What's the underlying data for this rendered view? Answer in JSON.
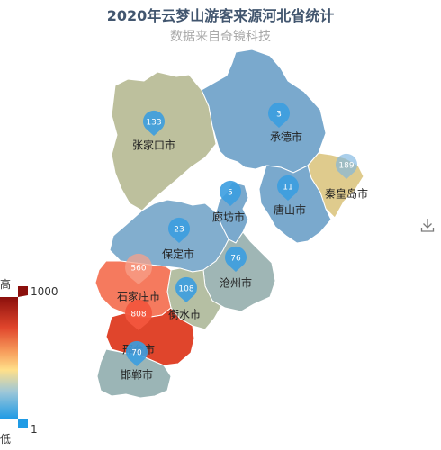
{
  "title": "2020年云梦山游客来源河北省统计",
  "subtitle": "数据来自奇镜科技",
  "colors": {
    "title": "#42566f",
    "subtitle": "#a9a9a9",
    "pin": "#3b9de0",
    "border": "#ffffff"
  },
  "visual_map": {
    "min_value": "1",
    "max_value": "1000",
    "high_label": "高",
    "low_label": "低"
  },
  "toolbox": {
    "icon": "download-icon"
  },
  "cities": [
    {
      "name": "张家口市",
      "value": 133,
      "color": "#bdc09d"
    },
    {
      "name": "承德市",
      "value": 3,
      "color": "#7aa9cd"
    },
    {
      "name": "秦皇岛市",
      "value": 189,
      "color": "#dfcb8d"
    },
    {
      "name": "唐山市",
      "value": 11,
      "color": "#7aa9cd"
    },
    {
      "name": "廊坊市",
      "value": 5,
      "color": "#7aa9cd"
    },
    {
      "name": "保定市",
      "value": 23,
      "color": "#82aece"
    },
    {
      "name": "沧州市",
      "value": 76,
      "color": "#9fb6b5"
    },
    {
      "name": "衡水市",
      "value": 108,
      "color": "#b5bfa3"
    },
    {
      "name": "石家庄市",
      "value": 560,
      "color": "#f57a5e"
    },
    {
      "name": "邢台市",
      "value": 808,
      "color": "#e0452c"
    },
    {
      "name": "邯郸市",
      "value": 70,
      "color": "#9bb5b6"
    }
  ]
}
